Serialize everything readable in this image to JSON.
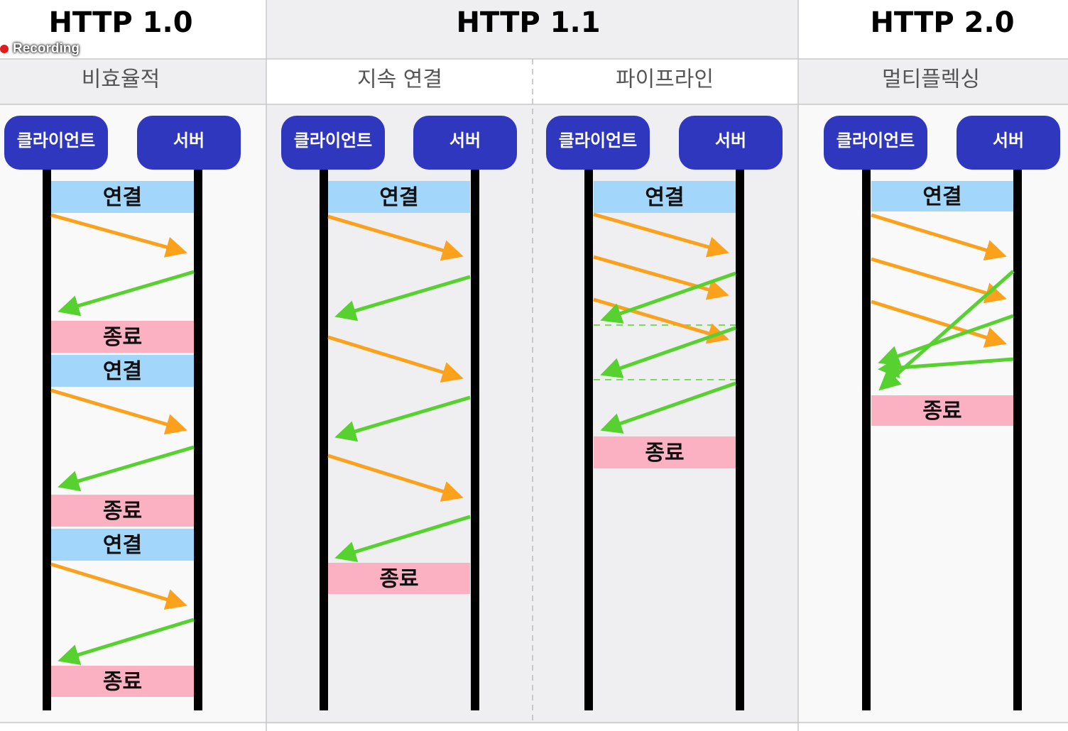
{
  "recording": {
    "label": "Recording",
    "dot_color": "#e31b1b"
  },
  "columns": [
    {
      "title": "HTTP 1.0",
      "subtitles": [
        "비효율적"
      ]
    },
    {
      "title": "HTTP 1.1",
      "subtitles": [
        "지속 연결",
        "파이프라인"
      ]
    },
    {
      "title": "HTTP 2.0",
      "subtitles": [
        "멀티플렉싱"
      ]
    }
  ],
  "labels": {
    "client": "클라이언트",
    "server": "서버",
    "connect": "연결",
    "close": "종료"
  },
  "lanes": [
    {
      "name": "http10",
      "events": [
        "connect",
        "request",
        "response",
        "close",
        "connect",
        "request",
        "response",
        "close",
        "connect",
        "request",
        "response",
        "close"
      ]
    },
    {
      "name": "persistent",
      "events": [
        "connect",
        "request",
        "response",
        "request",
        "response",
        "request",
        "response",
        "close"
      ]
    },
    {
      "name": "pipeline",
      "events": [
        "connect",
        "request",
        "request",
        "request",
        "response",
        "response",
        "response",
        "close"
      ]
    },
    {
      "name": "multiplexing",
      "events": [
        "connect",
        "request",
        "request",
        "request",
        "response",
        "response",
        "response",
        "close"
      ]
    }
  ],
  "colors": {
    "node": "#2f37be",
    "connect": "#a3d6fb",
    "close": "#fbb1c1",
    "request": "#fba11c",
    "response": "#57d12f",
    "gray_bg": "#efeff1"
  }
}
